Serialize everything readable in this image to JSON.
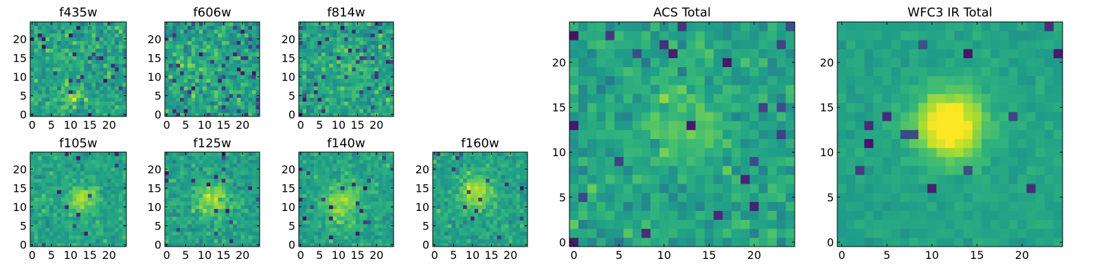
{
  "chart_data": [
    {
      "type": "heatmap",
      "title": "f435w",
      "grid_size": [
        25,
        25
      ],
      "xlim": [
        -0.5,
        24.5
      ],
      "ylim": [
        -0.5,
        24.5
      ],
      "xticks": [
        "0",
        "5",
        "10",
        "15",
        "20"
      ],
      "yticks": [
        "0",
        "5",
        "10",
        "15",
        "20"
      ],
      "colormap": "viridis",
      "pattern": "noisy, faint compact source near (10, 4)",
      "seed": 11,
      "noise": 0.3,
      "source": {
        "x": 10,
        "y": 4,
        "sigma": 1.6,
        "amp": 0.25
      },
      "dark_frac": 0.04
    },
    {
      "type": "heatmap",
      "title": "f606w",
      "grid_size": [
        25,
        25
      ],
      "xlim": [
        -0.5,
        24.5
      ],
      "ylim": [
        -0.5,
        24.5
      ],
      "xticks": [
        "0",
        "5",
        "10",
        "15",
        "20"
      ],
      "yticks": [
        "0",
        "5",
        "10",
        "15",
        "20"
      ],
      "colormap": "viridis",
      "pattern": "noisy, no clear source",
      "seed": 23,
      "noise": 0.32,
      "source": {
        "x": 12,
        "y": 12,
        "sigma": 3.0,
        "amp": 0.06
      },
      "dark_frac": 0.06
    },
    {
      "type": "heatmap",
      "title": "f814w",
      "grid_size": [
        25,
        25
      ],
      "xlim": [
        -0.5,
        24.5
      ],
      "ylim": [
        -0.5,
        24.5
      ],
      "xticks": [
        "0",
        "5",
        "10",
        "15",
        "20"
      ],
      "yticks": [
        "0",
        "5",
        "10",
        "15",
        "20"
      ],
      "colormap": "viridis",
      "pattern": "noisy, weak source near centre",
      "seed": 37,
      "noise": 0.3,
      "source": {
        "x": 13,
        "y": 12,
        "sigma": 3.0,
        "amp": 0.12
      },
      "dark_frac": 0.05
    },
    {
      "type": "heatmap",
      "title": "f105w",
      "grid_size": [
        25,
        25
      ],
      "xlim": [
        -0.5,
        24.5
      ],
      "ylim": [
        -0.5,
        24.5
      ],
      "xticks": [
        "0",
        "5",
        "10",
        "15",
        "20"
      ],
      "yticks": [
        "0",
        "5",
        "10",
        "15",
        "20"
      ],
      "colormap": "viridis",
      "pattern": "source near (13, 12)",
      "seed": 41,
      "noise": 0.2,
      "source": {
        "x": 13,
        "y": 12,
        "sigma": 2.6,
        "amp": 0.3
      },
      "dark_frac": 0.02
    },
    {
      "type": "heatmap",
      "title": "f125w",
      "grid_size": [
        25,
        25
      ],
      "xlim": [
        -0.5,
        24.5
      ],
      "ylim": [
        -0.5,
        24.5
      ],
      "xticks": [
        "0",
        "5",
        "10",
        "15",
        "20"
      ],
      "yticks": [
        "0",
        "5",
        "10",
        "15",
        "20"
      ],
      "colormap": "viridis",
      "pattern": "elongated source near (12, 12)",
      "seed": 53,
      "noise": 0.22,
      "source": {
        "x": 12,
        "y": 12,
        "sigma": 3.0,
        "amp": 0.28
      },
      "dark_frac": 0.04
    },
    {
      "type": "heatmap",
      "title": "f140w",
      "grid_size": [
        25,
        25
      ],
      "xlim": [
        -0.5,
        24.5
      ],
      "ylim": [
        -0.5,
        24.5
      ],
      "xticks": [
        "0",
        "5",
        "10",
        "15",
        "20"
      ],
      "yticks": [
        "0",
        "5",
        "10",
        "15",
        "20"
      ],
      "colormap": "viridis",
      "pattern": "broad source near centre",
      "seed": 67,
      "noise": 0.2,
      "source": {
        "x": 11,
        "y": 11,
        "sigma": 3.6,
        "amp": 0.26
      },
      "dark_frac": 0.03
    },
    {
      "type": "heatmap",
      "title": "f160w",
      "grid_size": [
        25,
        25
      ],
      "xlim": [
        -0.5,
        24.5
      ],
      "ylim": [
        -0.5,
        24.5
      ],
      "xticks": [
        "0",
        "5",
        "10",
        "15",
        "20"
      ],
      "yticks": [
        "0",
        "5",
        "10",
        "15",
        "20"
      ],
      "colormap": "viridis",
      "pattern": "source near (11, 14)",
      "seed": 79,
      "noise": 0.2,
      "source": {
        "x": 11,
        "y": 14,
        "sigma": 3.2,
        "amp": 0.3
      },
      "dark_frac": 0.03
    },
    {
      "type": "heatmap",
      "title": "ACS Total",
      "grid_size": [
        25,
        25
      ],
      "xlim": [
        -0.5,
        24.5
      ],
      "ylim": [
        -0.5,
        24.5
      ],
      "xticks": [
        "0",
        "5",
        "10",
        "15",
        "20"
      ],
      "yticks": [
        "0",
        "5",
        "10",
        "15",
        "20"
      ],
      "colormap": "viridis",
      "pattern": "noisy mosaic, mild excess near (12, 14)",
      "seed": 97,
      "noise": 0.22,
      "source": {
        "x": 12,
        "y": 14,
        "sigma": 3.0,
        "amp": 0.15
      },
      "dark_frac": 0.035
    },
    {
      "type": "heatmap",
      "title": "WFC3 IR Total",
      "grid_size": [
        25,
        25
      ],
      "xlim": [
        -0.5,
        24.5
      ],
      "ylim": [
        -0.5,
        24.5
      ],
      "xticks": [
        "0",
        "5",
        "10",
        "15",
        "20"
      ],
      "yticks": [
        "0",
        "5",
        "10",
        "15",
        "20"
      ],
      "colormap": "viridis",
      "pattern": "smooth, bright source at (12, 13)",
      "seed": 113,
      "noise": 0.1,
      "source": {
        "x": 12,
        "y": 13,
        "sigma": 2.6,
        "amp": 0.55
      },
      "dark_frac": 0.02
    }
  ]
}
